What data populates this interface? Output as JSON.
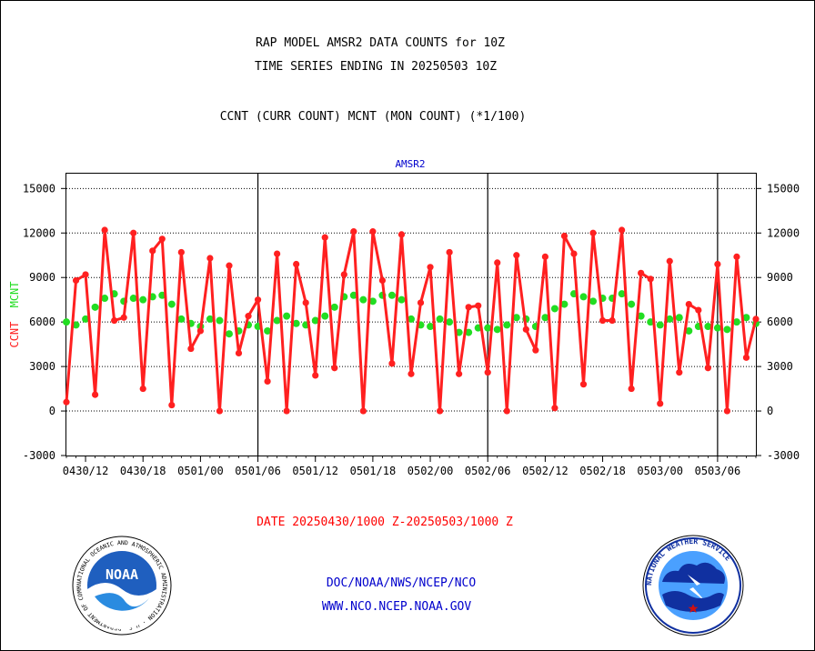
{
  "titles": {
    "line1": "RAP MODEL AMSR2 DATA COUNTS for 10Z",
    "line2": "TIME SERIES ENDING IN 20250503 10Z",
    "line3": "CCNT (CURR COUNT) MCNT (MON COUNT) (*1/100)",
    "panel": "AMSR2"
  },
  "footer": {
    "date_range": "DATE 20250430/1000 Z-20250503/1000 Z",
    "org": "DOC/NOAA/NWS/NCEP/NCO",
    "url": "WWW.NCO.NCEP.NOAA.GOV"
  },
  "logos": {
    "noaa_text": "NOAA",
    "noaa_ring": "NATIONAL OCEANIC AND ATMOSPHERIC ADMINISTRATION · U.S. DEPARTMENT OF COMMERCE",
    "nws_ring": "NATIONAL WEATHER SERVICE"
  },
  "colors": {
    "ccnt": "#ff2020",
    "mcnt": "#22dd22",
    "title": "#000000",
    "panel_title": "#0000cc",
    "footer_red": "#ff0000",
    "footer_blue": "#0000cc"
  },
  "chart_data": {
    "type": "line",
    "x_start_hour": 0,
    "ylim": [
      -3000,
      16000
    ],
    "yticks": [
      -3000,
      0,
      3000,
      6000,
      9000,
      12000,
      15000
    ],
    "ylabel_parts": [
      {
        "text": "CCNT",
        "color": "#ff2020"
      },
      {
        "text": "MCNT",
        "color": "#22dd22"
      }
    ],
    "xlim_hours": [
      0,
      72
    ],
    "xticks": [
      {
        "label": "0430/12",
        "hour": 2
      },
      {
        "label": "0430/18",
        "hour": 8
      },
      {
        "label": "0501/00",
        "hour": 14
      },
      {
        "label": "0501/06",
        "hour": 20
      },
      {
        "label": "0501/12",
        "hour": 26
      },
      {
        "label": "0501/18",
        "hour": 32
      },
      {
        "label": "0502/00",
        "hour": 38
      },
      {
        "label": "0502/06",
        "hour": 44
      },
      {
        "label": "0502/12",
        "hour": 50
      },
      {
        "label": "0502/18",
        "hour": 56
      },
      {
        "label": "0503/00",
        "hour": 62
      },
      {
        "label": "0503/06",
        "hour": 68
      }
    ],
    "day_separators_hours": [
      14,
      38,
      62
    ],
    "separator_hours": [
      20,
      44,
      68
    ],
    "series": [
      {
        "name": "CCNT",
        "color": "#ff2020",
        "values": [
          600,
          8800,
          9200,
          1100,
          12200,
          6100,
          6300,
          12000,
          1500,
          10800,
          11600,
          400,
          10700,
          4200,
          5400,
          10300,
          0,
          9800,
          3900,
          6400,
          7500,
          2000,
          10600,
          0,
          9900,
          7300,
          2400,
          11700,
          2900,
          9200,
          12100,
          0,
          12100,
          8800,
          3200,
          11900,
          2500,
          7300,
          9700,
          0,
          10700,
          2500,
          7000,
          7100,
          2600,
          10000,
          0,
          10500,
          5500,
          4100,
          10400,
          200,
          11800,
          10600,
          1800,
          12000,
          6100,
          6100,
          12200,
          1500,
          9300,
          8900,
          500,
          10100,
          2600,
          7200,
          6800,
          2900,
          9900,
          0,
          10400,
          3600,
          6200
        ]
      },
      {
        "name": "MCNT",
        "color": "#22dd22",
        "values": [
          6000,
          5800,
          6200,
          7000,
          7600,
          7900,
          7400,
          7600,
          7500,
          7700,
          7800,
          7200,
          6200,
          5900,
          5700,
          6200,
          6100,
          5200,
          5400,
          5800,
          5700,
          5400,
          6100,
          6400,
          5900,
          5800,
          6100,
          6400,
          7000,
          7700,
          7800,
          7500,
          7400,
          7800,
          7800,
          7500,
          6200,
          5800,
          5700,
          6200,
          6000,
          5300,
          5300,
          5600,
          5600,
          5500,
          5800,
          6300,
          6200,
          5700,
          6300,
          6900,
          7200,
          7900,
          7700,
          7400,
          7600,
          7600,
          7900,
          7200,
          6400,
          6000,
          5800,
          6200,
          6300,
          5400,
          5700,
          5700,
          5600,
          5500,
          6000,
          6300,
          5900
        ]
      }
    ]
  }
}
